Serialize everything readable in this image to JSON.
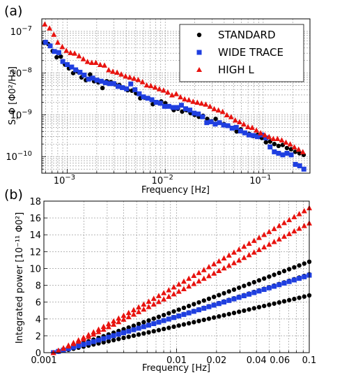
{
  "colors": {
    "standard": "#000000",
    "wide_trace": "#1f3fe0",
    "high_l": "#e8130f"
  },
  "chart_data": [
    {
      "id": "a",
      "type": "scatter",
      "panel_label": "(a)",
      "xscale": "log",
      "yscale": "log",
      "xlabel": "Frequency [Hz]",
      "ylabel": "S_Φ [Φ0²/Hz]",
      "xlim": [
        0.00055,
        0.3
      ],
      "ylim": [
        4e-11,
        2e-07
      ],
      "xticks": [
        {
          "label": "10",
          "exp": "−3",
          "value": 0.001
        },
        {
          "label": "10",
          "exp": "−2",
          "value": 0.01
        },
        {
          "label": "10",
          "exp": "−1",
          "value": 0.1
        }
      ],
      "yticks": [
        {
          "label": "10",
          "exp": "−7",
          "value": 1e-07
        },
        {
          "label": "10",
          "exp": "−8",
          "value": 1e-08
        },
        {
          "label": "10",
          "exp": "−9",
          "value": 1e-09
        },
        {
          "label": "10",
          "exp": "−10",
          "value": 1e-10
        }
      ],
      "grid": true,
      "legend_position": "top-right",
      "series": [
        {
          "name": "STANDARD",
          "marker": "circle",
          "color_key": "standard",
          "x": [
            0.00058,
            0.00064,
            0.00071,
            0.00078,
            0.00086,
            0.00095,
            0.00104,
            0.00115,
            0.00127,
            0.0014,
            0.00155,
            0.00171,
            0.00188,
            0.00208,
            0.00229,
            0.00253,
            0.00279,
            0.00308,
            0.0034,
            0.00375,
            0.00414,
            0.00457,
            0.00504,
            0.00556,
            0.00613,
            0.00677,
            0.00747,
            0.00824,
            0.00909,
            0.01003,
            0.01107,
            0.01222,
            0.01348,
            0.01488,
            0.01642,
            0.01811,
            0.01999,
            0.02206,
            0.02434,
            0.02686,
            0.02964,
            0.03271,
            0.0361,
            0.03983,
            0.04396,
            0.04851,
            0.05353,
            0.05907,
            0.06519,
            0.07194,
            0.07938,
            0.0876,
            0.09667,
            0.10667,
            0.11771,
            0.1299,
            0.14334,
            0.15818,
            0.17455,
            0.19262,
            0.21256,
            0.23456,
            0.25883
          ],
          "y": [
            5.3e-08,
            5e-08,
            3.4e-08,
            2.4e-08,
            2.5e-08,
            1.6e-08,
            1.3e-08,
            1e-08,
            1.1e-08,
            7.9e-09,
            6.8e-09,
            9.3e-09,
            6.4e-09,
            6e-09,
            4.4e-09,
            6.4e-09,
            6.1e-09,
            5.4e-09,
            5.2e-09,
            4.5e-09,
            3.9e-09,
            3.8e-09,
            3.3e-09,
            2.5e-09,
            2.6e-09,
            2.5e-09,
            1.8e-09,
            2e-09,
            2.1e-09,
            1.9e-09,
            1.6e-09,
            1.3e-09,
            1.4e-09,
            1.2e-09,
            1.3e-09,
            1.1e-09,
            1e-09,
            9e-10,
            9.5e-10,
            8e-10,
            7e-10,
            8e-10,
            6.5e-10,
            6e-10,
            5.5e-10,
            4.8e-10,
            4e-10,
            4.5e-10,
            3.7e-10,
            3.5e-10,
            3.1e-10,
            3.3e-10,
            2.8e-10,
            2.2e-10,
            2.3e-10,
            2e-10,
            1.8e-10,
            1.9e-10,
            1.6e-10,
            1.5e-10,
            1.3e-10,
            1.2e-10,
            1.1e-10
          ]
        },
        {
          "name": "WIDE TRACE",
          "marker": "square",
          "color_key": "wide_trace",
          "x": [
            0.0006,
            0.00067,
            0.00074,
            0.00082,
            0.0009,
            0.001,
            0.00111,
            0.00122,
            0.00135,
            0.00149,
            0.00165,
            0.00182,
            0.00201,
            0.00222,
            0.00245,
            0.00271,
            0.00299,
            0.0033,
            0.00365,
            0.00403,
            0.00445,
            0.00491,
            0.00543,
            0.00599,
            0.00662,
            0.00731,
            0.00807,
            0.00891,
            0.00984,
            0.01087,
            0.012,
            0.01325,
            0.01463,
            0.01616,
            0.01785,
            0.01971,
            0.02176,
            0.02403,
            0.02654,
            0.02931,
            0.03237,
            0.03574,
            0.03947,
            0.04358,
            0.04813,
            0.05315,
            0.0587,
            0.06482,
            0.07158,
            0.07905,
            0.0873,
            0.0964,
            0.10646,
            0.11756,
            0.12982,
            0.14337,
            0.15832,
            0.17483,
            0.19307,
            0.2132,
            0.23544,
            0.26
          ],
          "y": [
            5.5e-08,
            4.5e-08,
            3.3e-08,
            3.1e-08,
            1.9e-08,
            1.6e-08,
            1.4e-08,
            1.2e-08,
            1.05e-08,
            9e-09,
            7.2e-09,
            7.6e-09,
            6.8e-09,
            6.4e-09,
            5.9e-09,
            5.6e-09,
            5.6e-09,
            4.8e-09,
            4.5e-09,
            4.2e-09,
            5.5e-09,
            4e-09,
            3.2e-09,
            2.7e-09,
            2.5e-09,
            2.3e-09,
            2e-09,
            1.9e-09,
            1.6e-09,
            1.6e-09,
            1.5e-09,
            1.5e-09,
            1.7e-09,
            1.4e-09,
            1.3e-09,
            1.1e-09,
            1.05e-09,
            9e-10,
            6.5e-10,
            6.8e-10,
            6e-10,
            6.5e-10,
            5.7e-10,
            5.5e-10,
            4.8e-10,
            5e-10,
            4.1e-10,
            3.7e-10,
            3.3e-10,
            3.2e-10,
            3e-10,
            3.3e-10,
            2.8e-10,
            1.7e-10,
            1.3e-10,
            1.2e-10,
            1.1e-10,
            1.2e-10,
            1.1e-10,
            6.5e-11,
            6e-11,
            5e-11
          ]
        },
        {
          "name": "HIGH L",
          "marker": "triangle",
          "color_key": "high_l",
          "x": [
            0.00059,
            0.00066,
            0.00073,
            0.0008,
            0.00089,
            0.00098,
            0.00108,
            0.00119,
            0.00132,
            0.00146,
            0.00161,
            0.00178,
            0.00196,
            0.00217,
            0.0024,
            0.00265,
            0.00292,
            0.00323,
            0.00356,
            0.00394,
            0.00435,
            0.0048,
            0.0053,
            0.00586,
            0.00647,
            0.00714,
            0.00789,
            0.00871,
            0.00962,
            0.01062,
            0.01173,
            0.01295,
            0.0143,
            0.01579,
            0.01744,
            0.01926,
            0.02127,
            0.02348,
            0.02593,
            0.02863,
            0.03162,
            0.03492,
            0.03856,
            0.04258,
            0.04702,
            0.05192,
            0.05733,
            0.06331,
            0.06991,
            0.0772,
            0.08525,
            0.09414,
            0.10395,
            0.11479,
            0.12676,
            0.13998,
            0.15457,
            0.17069,
            0.18849,
            0.20814,
            0.22984,
            0.2538
          ],
          "y": [
            1.5e-07,
            1.2e-07,
            8.5e-08,
            5.5e-08,
            4.3e-08,
            3.5e-08,
            3.1e-08,
            3e-08,
            2.6e-08,
            2.2e-08,
            1.9e-08,
            1.8e-08,
            1.8e-08,
            1.6e-08,
            1.55e-08,
            1.2e-08,
            1.1e-08,
            1.05e-08,
            9.5e-09,
            8.5e-09,
            8e-09,
            7.5e-09,
            7e-09,
            6.2e-09,
            5.2e-09,
            5e-09,
            4.6e-09,
            4.2e-09,
            3.9e-09,
            3.5e-09,
            3e-09,
            3.2e-09,
            2.7e-09,
            2.4e-09,
            2.3e-09,
            2.1e-09,
            2e-09,
            1.9e-09,
            1.8e-09,
            1.6e-09,
            1.4e-09,
            1.3e-09,
            1.2e-09,
            1e-09,
            9e-10,
            7.5e-10,
            6.8e-10,
            6e-10,
            5.2e-10,
            5e-10,
            4.3e-10,
            3.7e-10,
            3.3e-10,
            3e-10,
            2.7e-10,
            2.7e-10,
            2.5e-10,
            2.2e-10,
            2e-10,
            1.7e-10,
            1.5e-10,
            1.3e-10
          ]
        }
      ]
    },
    {
      "id": "b",
      "type": "scatter",
      "panel_label": "(b)",
      "xscale": "log",
      "yscale": "linear",
      "xlabel": "Frequency [Hz]",
      "ylabel": "Integrated power [10⁻¹¹ Φ0²]",
      "xlim": [
        0.001,
        0.1
      ],
      "ylim": [
        0,
        18
      ],
      "xticks": [
        {
          "label": "0.001",
          "value": 0.001
        },
        {
          "label": "0.01",
          "value": 0.01
        },
        {
          "label": "0.02",
          "value": 0.02
        },
        {
          "label": "0.04",
          "value": 0.04
        },
        {
          "label": "0.06",
          "value": 0.06
        },
        {
          "label": "0.1",
          "value": 0.1
        }
      ],
      "yticks": [
        0,
        2,
        4,
        6,
        8,
        10,
        12,
        14,
        16,
        18
      ],
      "grid": true,
      "series": [
        {
          "name": "STANDARD",
          "marker": "circle",
          "color_key": "standard",
          "curves": [
            {
              "y_end": 10.8
            },
            {
              "y_end": 9.3
            },
            {
              "y_end": 6.8
            }
          ]
        },
        {
          "name": "WIDE TRACE",
          "marker": "square",
          "color_key": "wide_trace",
          "curves": [
            {
              "y_end": 9.2
            }
          ]
        },
        {
          "name": "HIGH L",
          "marker": "triangle",
          "color_key": "high_l",
          "curves": [
            {
              "y_end": 17.2
            },
            {
              "y_end": 15.4
            }
          ]
        }
      ]
    }
  ]
}
